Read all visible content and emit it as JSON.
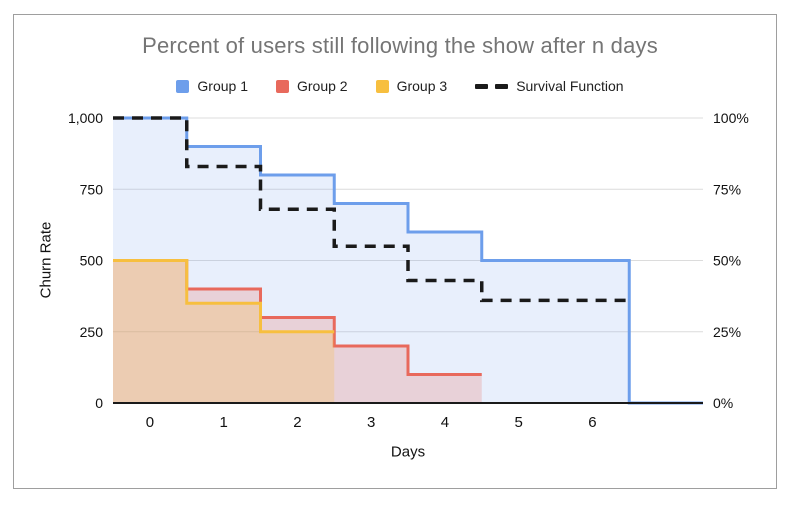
{
  "window": {
    "background": "#ffffff",
    "card_border_color": "#9e9e9e"
  },
  "chart_data": {
    "type": "area",
    "subtype": "step",
    "title": "Percent of users still following the show after n days",
    "title_color": "#757575",
    "xlabel": "Days",
    "ylabel": "Churn Rate",
    "legend_position": "top",
    "grid": "horizontal-only",
    "grid_color": "#dcdcdc",
    "baseline_color": "#1a1a1a",
    "xlim": [
      -0.5,
      7.5
    ],
    "ylim_left": [
      0,
      1000
    ],
    "ylim_right_percent": [
      0,
      100
    ],
    "x_tick_values": [
      0,
      1,
      2,
      3,
      4,
      5,
      6
    ],
    "x_tick_labels": [
      "0",
      "1",
      "2",
      "3",
      "4",
      "5",
      "6"
    ],
    "left_tick_values": [
      1000,
      750,
      500,
      250,
      0
    ],
    "left_tick_labels": [
      "1,000",
      "750",
      "500",
      "250",
      "0"
    ],
    "right_tick_values": [
      100,
      75,
      50,
      25,
      0
    ],
    "right_tick_labels": [
      "100%",
      "75%",
      "50%",
      "25%",
      "0%"
    ],
    "series": [
      {
        "name": "Group 1",
        "color": "#6d9eeb",
        "fill": true,
        "fill_opacity": 0.16,
        "axis": "left",
        "steps": [
          [
            -0.5,
            1000
          ],
          [
            0.5,
            900
          ],
          [
            1.5,
            800
          ],
          [
            2.5,
            700
          ],
          [
            3.5,
            600
          ],
          [
            4.5,
            500
          ],
          [
            6.5,
            0
          ]
        ],
        "end_x": 7.5
      },
      {
        "name": "Group 2",
        "color": "#e8695c",
        "fill": true,
        "fill_opacity": 0.22,
        "axis": "left",
        "steps": [
          [
            -0.5,
            500
          ],
          [
            0.5,
            400
          ],
          [
            1.5,
            300
          ],
          [
            2.5,
            200
          ],
          [
            3.5,
            100
          ]
        ],
        "end_x": 4.5
      },
      {
        "name": "Group 3",
        "color": "#f7bf3f",
        "fill": true,
        "fill_opacity": 0.25,
        "axis": "left",
        "steps": [
          [
            -0.5,
            500
          ],
          [
            0.5,
            350
          ],
          [
            1.5,
            250
          ]
        ],
        "end_x": 2.5
      },
      {
        "name": "Survival Function",
        "color": "#1a1a1a",
        "fill": false,
        "dashed": true,
        "axis": "percent",
        "steps": [
          [
            -0.5,
            100
          ],
          [
            0.5,
            83
          ],
          [
            1.5,
            68
          ],
          [
            2.5,
            55
          ],
          [
            3.5,
            43
          ],
          [
            4.5,
            36
          ]
        ],
        "end_x": 6.5
      }
    ]
  }
}
